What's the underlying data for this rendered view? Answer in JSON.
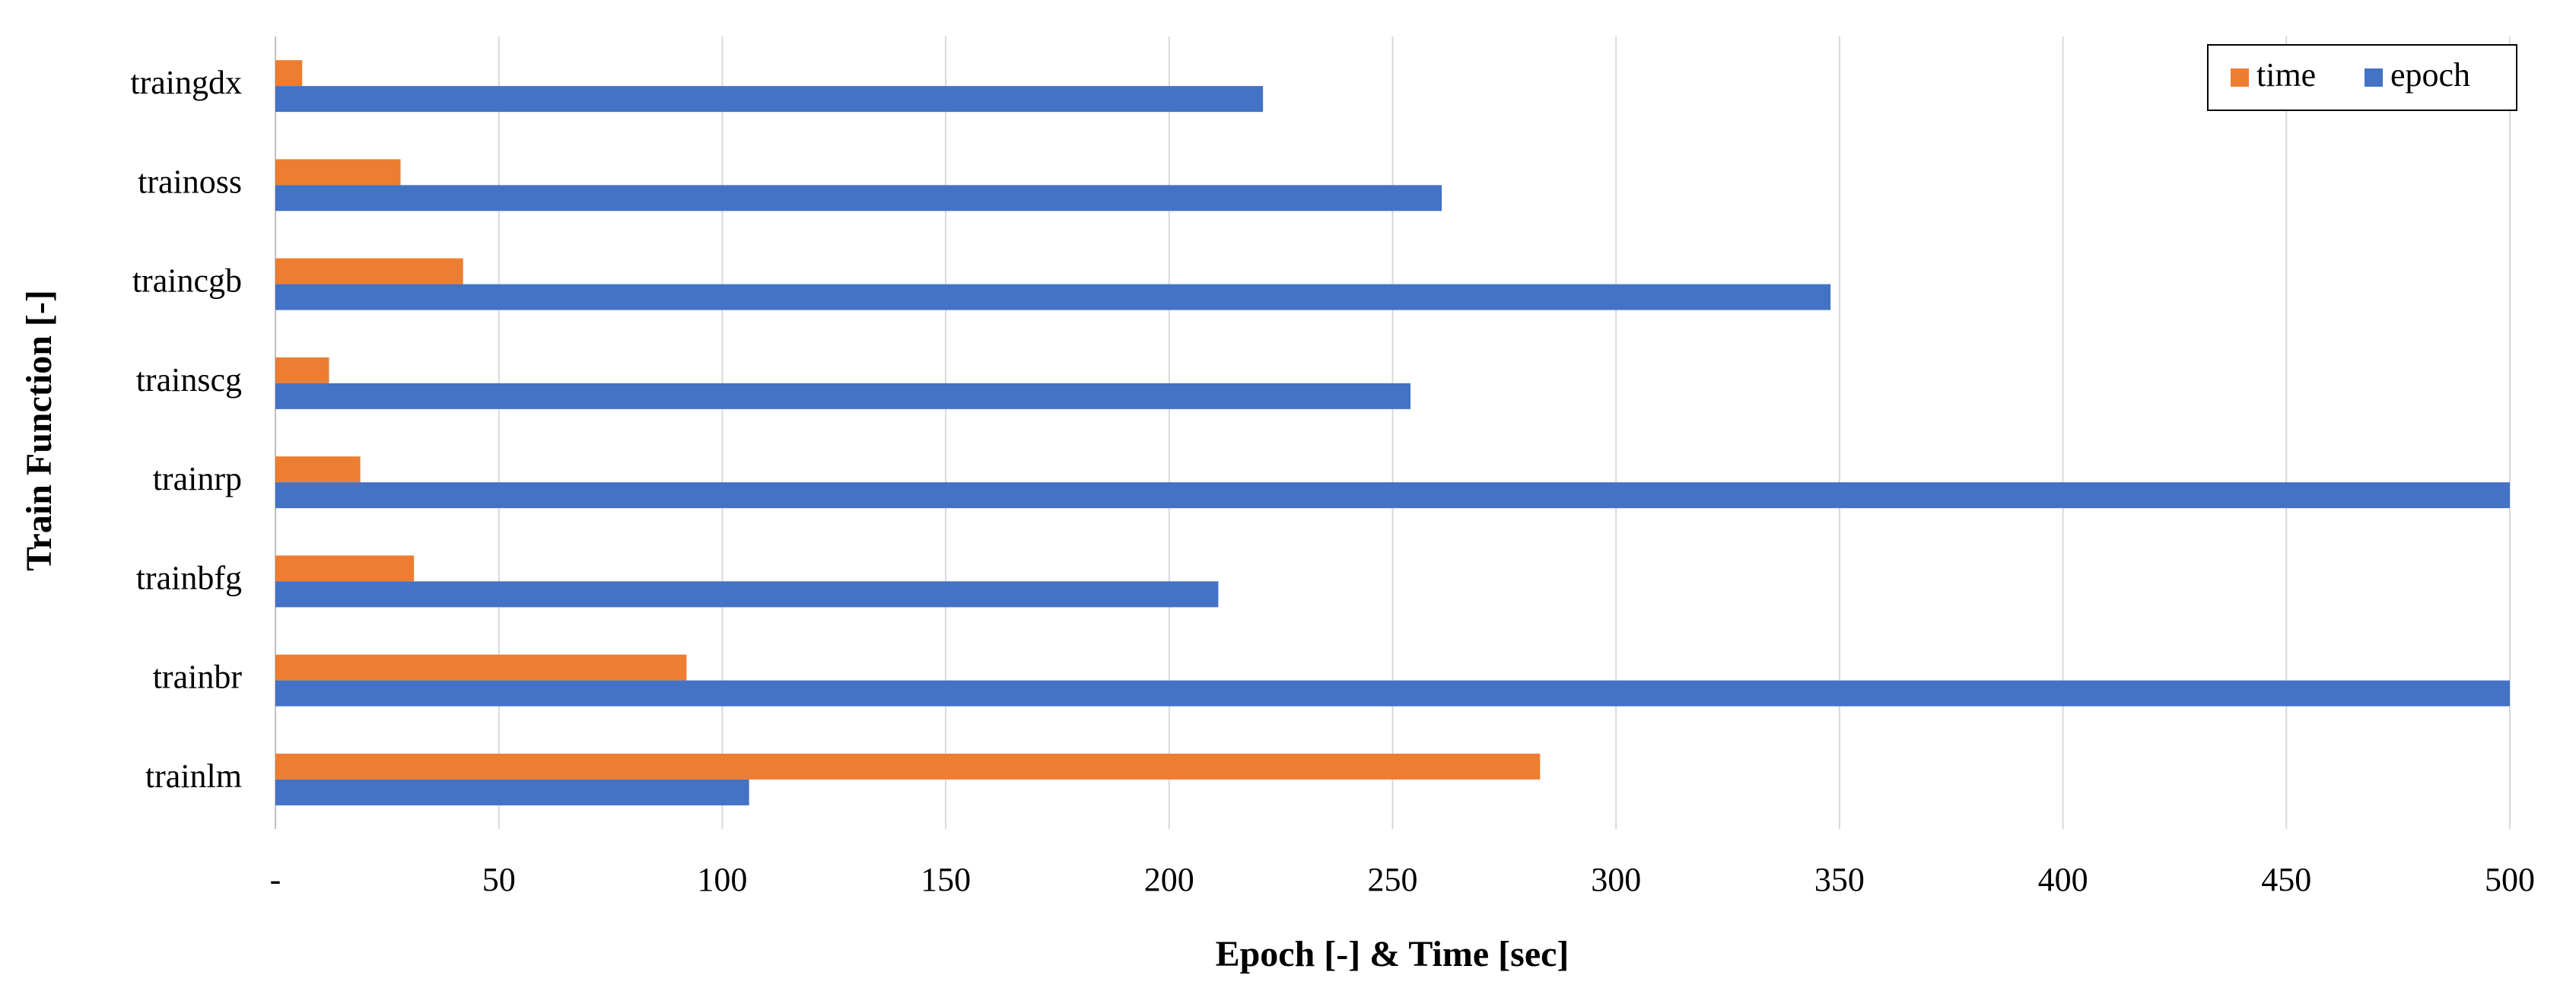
{
  "chart_data": {
    "type": "hbar",
    "y_label": "Train Function [-]",
    "x_label": "Epoch [-] & Time [sec]",
    "categories": [
      "traingdx",
      "trainoss",
      "traincgb",
      "trainscg",
      "trainrp",
      "trainbfg",
      "trainbr",
      "trainlm"
    ],
    "series": [
      {
        "name": "time",
        "color": "#ed7d31",
        "values": [
          6,
          28,
          42,
          12,
          19,
          31,
          92,
          283
        ]
      },
      {
        "name": "epoch",
        "color": "#4472c4",
        "values": [
          221,
          261,
          348,
          254,
          500,
          211,
          500,
          106
        ]
      }
    ],
    "xlim": [
      0,
      500
    ],
    "xticks": [
      {
        "value": 0,
        "label": "-"
      },
      50,
      100,
      150,
      200,
      250,
      300,
      350,
      400,
      450,
      500
    ],
    "grid": true,
    "legend": "top-right"
  }
}
